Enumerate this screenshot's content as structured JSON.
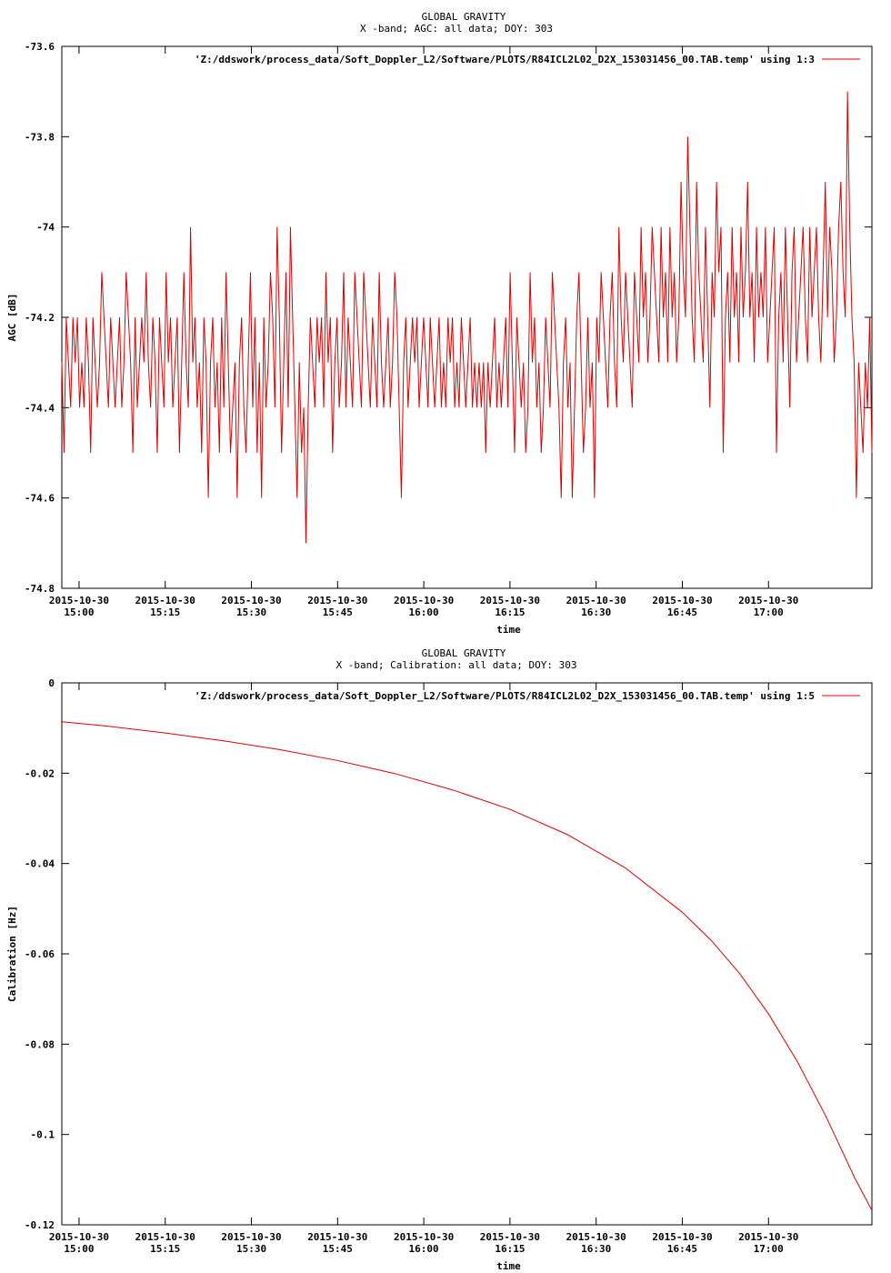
{
  "chart_data": [
    {
      "type": "line",
      "title": "GLOBAL GRAVITY",
      "subtitle": "X -band; AGC: all data; DOY: 303",
      "xlabel": "time",
      "ylabel": "AGC [dB]",
      "ylim": [
        -74.8,
        -73.6
      ],
      "yticks": [
        -73.6,
        -73.8,
        -74,
        -74.2,
        -74.4,
        -74.6,
        -74.8
      ],
      "xticks": [
        "15:00",
        "15:15",
        "15:30",
        "15:45",
        "16:00",
        "16:15",
        "16:30",
        "16:45",
        "17:00"
      ],
      "xtick_date": "2015-10-30",
      "xlim": [
        "14:57",
        "17:18"
      ],
      "legend": "top-right",
      "series": [
        {
          "name": "'Z:/ddswork/process_data/Soft_Doppler_L2/Software/PLOTS/R84ICL2L02_D2X_153031456_00.TAB.temp' using 1:3",
          "color": "#dd0000",
          "step_minutes": 0.33,
          "values": [
            -74.3,
            -74.5,
            -74.2,
            -74.3,
            -74.4,
            -74.2,
            -74.3,
            -74.2,
            -74.4,
            -74.3,
            -74.4,
            -74.2,
            -74.3,
            -74.5,
            -74.2,
            -74.3,
            -74.4,
            -74.3,
            -74.1,
            -74.2,
            -74.3,
            -74.4,
            -74.2,
            -74.3,
            -74.4,
            -74.3,
            -74.2,
            -74.4,
            -74.3,
            -74.1,
            -74.2,
            -74.3,
            -74.5,
            -74.2,
            -74.4,
            -74.3,
            -74.2,
            -74.3,
            -74.1,
            -74.3,
            -74.4,
            -74.2,
            -74.3,
            -74.5,
            -74.2,
            -74.3,
            -74.4,
            -74.1,
            -74.3,
            -74.2,
            -74.4,
            -74.3,
            -74.2,
            -74.5,
            -74.3,
            -74.1,
            -74.3,
            -74.4,
            -74.0,
            -74.3,
            -74.2,
            -74.4,
            -74.3,
            -74.5,
            -74.2,
            -74.3,
            -74.6,
            -74.3,
            -74.2,
            -74.4,
            -74.3,
            -74.5,
            -74.2,
            -74.4,
            -74.1,
            -74.3,
            -74.5,
            -74.4,
            -74.3,
            -74.6,
            -74.3,
            -74.2,
            -74.4,
            -74.5,
            -74.3,
            -74.1,
            -74.4,
            -74.2,
            -74.5,
            -74.3,
            -74.6,
            -74.2,
            -74.4,
            -74.3,
            -74.1,
            -74.2,
            -74.4,
            -74.0,
            -74.2,
            -74.5,
            -74.3,
            -74.1,
            -74.4,
            -74.0,
            -74.2,
            -74.4,
            -74.6,
            -74.3,
            -74.5,
            -74.4,
            -74.7,
            -74.4,
            -74.2,
            -74.3,
            -74.4,
            -74.2,
            -74.3,
            -74.2,
            -74.4,
            -74.1,
            -74.3,
            -74.2,
            -74.5,
            -74.3,
            -74.2,
            -74.4,
            -74.3,
            -74.1,
            -74.4,
            -74.2,
            -74.3,
            -74.4,
            -74.1,
            -74.2,
            -74.3,
            -74.4,
            -74.1,
            -74.2,
            -74.3,
            -74.4,
            -74.2,
            -74.3,
            -74.4,
            -74.1,
            -74.3,
            -74.4,
            -74.3,
            -74.2,
            -74.4,
            -74.3,
            -74.1,
            -74.2,
            -74.4,
            -74.6,
            -74.3,
            -74.2,
            -74.4,
            -74.3,
            -74.2,
            -74.3,
            -74.2,
            -74.4,
            -74.3,
            -74.2,
            -74.3,
            -74.4,
            -74.2,
            -74.3,
            -74.4,
            -74.3,
            -74.2,
            -74.4,
            -74.3,
            -74.4,
            -74.2,
            -74.3,
            -74.2,
            -74.4,
            -74.3,
            -74.4,
            -74.2,
            -74.3,
            -74.4,
            -74.3,
            -74.2,
            -74.4,
            -74.3,
            -74.4,
            -74.3,
            -74.4,
            -74.3,
            -74.5,
            -74.3,
            -74.4,
            -74.3,
            -74.2,
            -74.4,
            -74.3,
            -74.4,
            -74.3,
            -74.2,
            -74.4,
            -74.1,
            -74.3,
            -74.5,
            -74.2,
            -74.3,
            -74.4,
            -74.3,
            -74.5,
            -74.4,
            -74.1,
            -74.3,
            -74.2,
            -74.4,
            -74.3,
            -74.5,
            -74.4,
            -74.2,
            -74.3,
            -74.4,
            -74.1,
            -74.2,
            -74.3,
            -74.4,
            -74.6,
            -74.3,
            -74.2,
            -74.4,
            -74.3,
            -74.6,
            -74.4,
            -74.2,
            -74.1,
            -74.3,
            -74.5,
            -74.4,
            -74.2,
            -74.4,
            -74.3,
            -74.6,
            -74.2,
            -74.3,
            -74.1,
            -74.2,
            -74.3,
            -74.4,
            -74.2,
            -74.1,
            -74.3,
            -74.4,
            -74.0,
            -74.2,
            -74.3,
            -74.1,
            -74.2,
            -74.3,
            -74.4,
            -74.1,
            -74.2,
            -74.3,
            -74.0,
            -74.2,
            -74.1,
            -74.3,
            -74.2,
            -74.0,
            -74.1,
            -74.2,
            -74.3,
            -74.0,
            -74.2,
            -74.1,
            -74.3,
            -74.0,
            -74.2,
            -74.1,
            -74.3,
            -74.2,
            -73.9,
            -74.1,
            -74.2,
            -73.8,
            -74.0,
            -74.2,
            -74.3,
            -73.9,
            -74.1,
            -74.2,
            -74.3,
            -74.0,
            -74.2,
            -74.4,
            -74.1,
            -74.2,
            -73.9,
            -74.1,
            -74.0,
            -74.5,
            -74.2,
            -74.1,
            -74.3,
            -74.0,
            -74.2,
            -74.1,
            -74.3,
            -74.0,
            -74.2,
            -74.1,
            -73.9,
            -74.2,
            -74.1,
            -74.3,
            -74.0,
            -74.2,
            -74.1,
            -74.2,
            -74.0,
            -74.3,
            -74.2,
            -74.1,
            -74.0,
            -74.5,
            -74.2,
            -74.1,
            -74.3,
            -74.0,
            -74.2,
            -74.4,
            -74.1,
            -74.0,
            -74.3,
            -74.2,
            -74.1,
            -74.0,
            -74.2,
            -74.3,
            -74.0,
            -74.2,
            -74.1,
            -74.0,
            -74.2,
            -74.3,
            -74.1,
            -73.9,
            -74.2,
            -74.0,
            -74.1,
            -74.3,
            -74.2,
            -74.0,
            -73.9,
            -74.1,
            -74.2,
            -73.7,
            -74.0,
            -74.2,
            -74.3,
            -74.6,
            -74.3,
            -74.4,
            -74.5,
            -74.3,
            -74.4,
            -74.2,
            -74.5
          ]
        }
      ]
    },
    {
      "type": "line",
      "title": "GLOBAL GRAVITY",
      "subtitle": "X -band; Calibration: all data; DOY: 303",
      "xlabel": "time",
      "ylabel": "Calibration [Hz]",
      "ylim": [
        -0.12,
        0
      ],
      "yticks": [
        0,
        -0.02,
        -0.04,
        -0.06,
        -0.08,
        -0.1,
        -0.12
      ],
      "xticks": [
        "15:00",
        "15:15",
        "15:30",
        "15:45",
        "16:00",
        "16:15",
        "16:30",
        "16:45",
        "17:00"
      ],
      "xtick_date": "2015-10-30",
      "xlim": [
        "14:57",
        "17:18"
      ],
      "legend": "top-right",
      "series": [
        {
          "name": "'Z:/ddswork/process_data/Soft_Doppler_L2/Software/PLOTS/R84ICL2L02_D2X_153031456_00.TAB.temp' using 1:5",
          "color": "#dd0000",
          "x": [
            "14:57",
            "15:05",
            "15:15",
            "15:25",
            "15:35",
            "15:45",
            "15:55",
            "16:05",
            "16:15",
            "16:25",
            "16:35",
            "16:45",
            "16:50",
            "16:55",
            "17:00",
            "17:05",
            "17:10",
            "17:15",
            "17:18"
          ],
          "values": [
            -0.0086,
            -0.0096,
            -0.0111,
            -0.0128,
            -0.0148,
            -0.0172,
            -0.0201,
            -0.0237,
            -0.028,
            -0.0336,
            -0.0409,
            -0.0508,
            -0.057,
            -0.0644,
            -0.0733,
            -0.0838,
            -0.096,
            -0.1096,
            -0.1168
          ]
        }
      ]
    }
  ]
}
